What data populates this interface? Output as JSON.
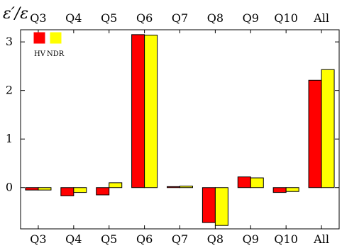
{
  "chart_data": {
    "type": "bar",
    "title": "ε′/ε",
    "categories": [
      "Q3",
      "Q4",
      "Q5",
      "Q6",
      "Q7",
      "Q8",
      "Q9",
      "Q10",
      "All"
    ],
    "series": [
      {
        "name": "HV",
        "color": "#ff0000",
        "values": [
          -0.05,
          -0.17,
          -0.15,
          3.15,
          0.02,
          -0.72,
          0.22,
          -0.1,
          2.21
        ]
      },
      {
        "name": "NDR",
        "color": "#ffff00",
        "values": [
          -0.05,
          -0.1,
          0.1,
          3.14,
          0.03,
          -0.78,
          0.2,
          -0.08,
          2.43
        ]
      }
    ],
    "y_ticks": [
      0,
      1,
      2,
      3
    ],
    "ylim": [
      -0.85,
      3.25
    ],
    "grid": false,
    "legend_position": "top-left",
    "frame": true
  }
}
